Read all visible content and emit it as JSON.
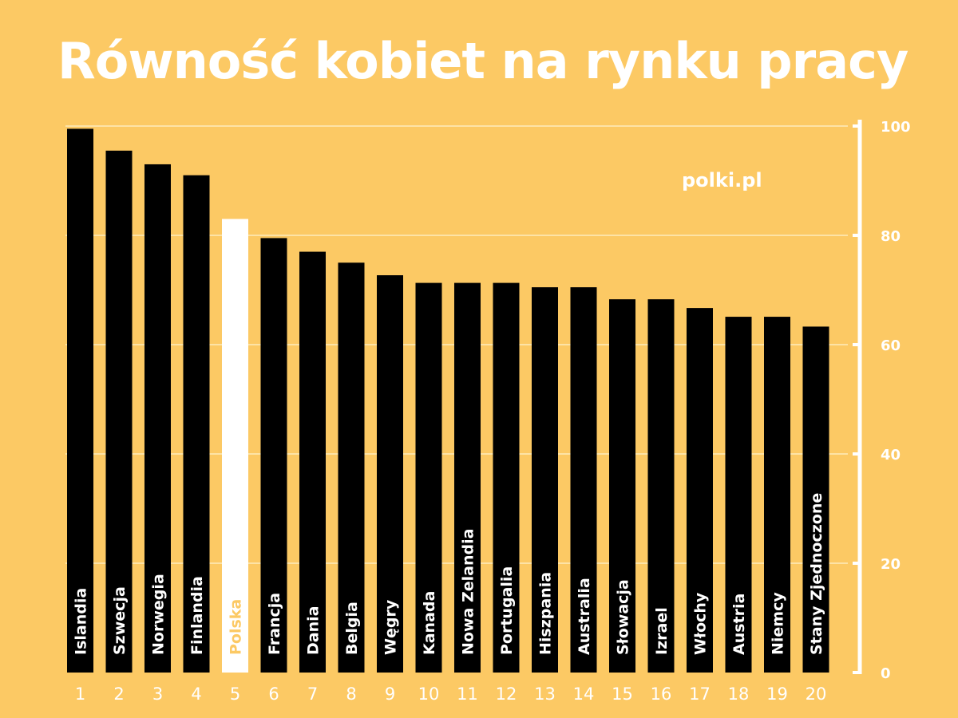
{
  "title": "Równość kobiet na rynku pracy",
  "watermark": "polki.pl",
  "colors": {
    "background": "#fcc964",
    "bar": "#000000",
    "highlight_bar": "#ffffff",
    "highlight_label": "#fcc964",
    "text": "#ffffff",
    "grid": "#fde3a6"
  },
  "chart_data": {
    "type": "bar",
    "orientation": "vertical",
    "title": "Równość kobiet na rynku pracy",
    "xlabel": "",
    "ylabel": "",
    "ylim": [
      0,
      100
    ],
    "y_ticks": [
      0,
      20,
      40,
      60,
      80,
      100
    ],
    "y_axis_position": "right",
    "grid": true,
    "categories": [
      "1",
      "2",
      "3",
      "4",
      "5",
      "6",
      "7",
      "8",
      "9",
      "10",
      "11",
      "12",
      "13",
      "14",
      "15",
      "16",
      "17",
      "18",
      "19",
      "20"
    ],
    "bar_labels": [
      "Islandia",
      "Szwecja",
      "Norwegia",
      "Finlandia",
      "Polska",
      "Francja",
      "Dania",
      "Belgia",
      "Węgry",
      "Kanada",
      "Nowa Zelandia",
      "Portugalia",
      "Hiszpania",
      "Australia",
      "Słowacja",
      "Izrael",
      "Włochy",
      "Austria",
      "Niemcy",
      "Stany Zjednoczone"
    ],
    "values": [
      99.5,
      95.5,
      93,
      91,
      83,
      79.5,
      77,
      75,
      72.7,
      71.3,
      71.3,
      71.3,
      70.5,
      70.5,
      68.3,
      68.3,
      66.7,
      65.1,
      65.1,
      63.3
    ],
    "highlight": "Polska"
  }
}
